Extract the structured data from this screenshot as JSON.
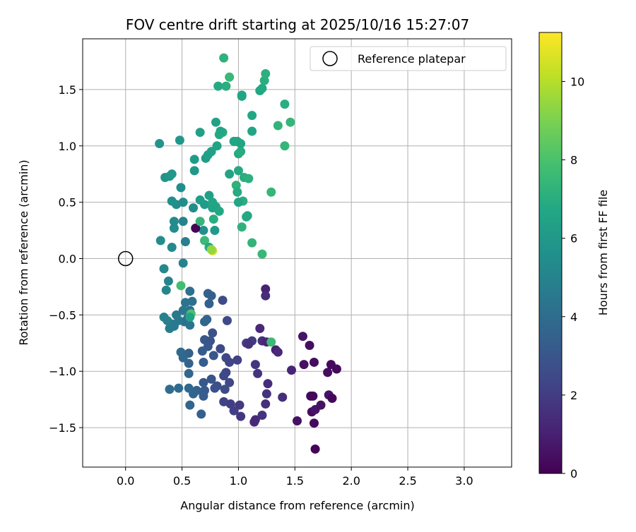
{
  "chart_data": {
    "type": "scatter",
    "title": "FOV centre drift starting at 2025/10/16 15:27:07",
    "xlabel": "Angular distance from reference (arcmin)",
    "ylabel": "Rotation from reference (arcmin)",
    "xlim": [
      -0.38,
      3.42
    ],
    "ylim": [
      -1.85,
      1.95
    ],
    "xticks": [
      0.0,
      0.5,
      1.0,
      1.5,
      2.0,
      2.5,
      3.0
    ],
    "xtick_labels": [
      "0.0",
      "0.5",
      "1.0",
      "1.5",
      "2.0",
      "2.5",
      "3.0"
    ],
    "yticks": [
      -1.5,
      -1.0,
      -0.5,
      0.0,
      0.5,
      1.0,
      1.5
    ],
    "ytick_labels": [
      "−1.5",
      "−1.0",
      "−0.5",
      "0.0",
      "0.5",
      "1.0",
      "1.5"
    ],
    "grid": true,
    "legend": {
      "position": "top-right",
      "entries": [
        "Reference platepar"
      ]
    },
    "reference_point": {
      "x": 0.0,
      "y": 0.0,
      "marker": "hollow circle"
    },
    "colorbar": {
      "label": "Hours from first FF file",
      "colormap": "viridis",
      "range": [
        0,
        11.25
      ],
      "ticks": [
        0,
        2,
        4,
        6,
        8,
        10
      ],
      "tick_labels": [
        "0",
        "2",
        "4",
        "6",
        "8",
        "10"
      ]
    },
    "points": [
      {
        "x": 1.68,
        "y": -1.69,
        "h": 0.1
      },
      {
        "x": 1.67,
        "y": -1.46,
        "h": 0.3
      },
      {
        "x": 1.52,
        "y": -1.44,
        "h": 0.5
      },
      {
        "x": 1.65,
        "y": -1.36,
        "h": 0.4
      },
      {
        "x": 1.68,
        "y": -1.34,
        "h": 0.6
      },
      {
        "x": 1.73,
        "y": -1.3,
        "h": 0.5
      },
      {
        "x": 1.64,
        "y": -1.22,
        "h": 0.3
      },
      {
        "x": 1.66,
        "y": -1.22,
        "h": 0.2
      },
      {
        "x": 1.8,
        "y": -1.21,
        "h": 0.6
      },
      {
        "x": 1.83,
        "y": -1.24,
        "h": 0.2
      },
      {
        "x": 1.79,
        "y": -1.01,
        "h": 0.4
      },
      {
        "x": 1.87,
        "y": -0.98,
        "h": 0.3
      },
      {
        "x": 1.82,
        "y": -0.94,
        "h": 0.3
      },
      {
        "x": 1.67,
        "y": -0.92,
        "h": 0.4
      },
      {
        "x": 1.58,
        "y": -0.94,
        "h": 0.5
      },
      {
        "x": 1.63,
        "y": -0.77,
        "h": 0.4
      },
      {
        "x": 1.57,
        "y": -0.69,
        "h": 0.6
      },
      {
        "x": 1.47,
        "y": -0.99,
        "h": 1.2
      },
      {
        "x": 1.39,
        "y": -1.23,
        "h": 1.5
      },
      {
        "x": 1.33,
        "y": -0.81,
        "h": 1.0
      },
      {
        "x": 1.35,
        "y": -0.83,
        "h": 1.3
      },
      {
        "x": 1.24,
        "y": -0.27,
        "h": 1.1
      },
      {
        "x": 1.24,
        "y": -0.33,
        "h": 1.4
      },
      {
        "x": 1.19,
        "y": -0.62,
        "h": 1.3
      },
      {
        "x": 1.21,
        "y": -0.73,
        "h": 1.5
      },
      {
        "x": 1.25,
        "y": -0.74,
        "h": 1.2
      },
      {
        "x": 1.26,
        "y": -1.11,
        "h": 1.4
      },
      {
        "x": 1.25,
        "y": -1.2,
        "h": 1.6
      },
      {
        "x": 1.24,
        "y": -1.29,
        "h": 1.5
      },
      {
        "x": 1.21,
        "y": -1.39,
        "h": 1.7
      },
      {
        "x": 1.15,
        "y": -1.43,
        "h": 1.4
      },
      {
        "x": 1.14,
        "y": -1.45,
        "h": 1.3
      },
      {
        "x": 1.02,
        "y": -1.4,
        "h": 1.8
      },
      {
        "x": 1.01,
        "y": -1.3,
        "h": 1.9
      },
      {
        "x": 0.93,
        "y": -1.29,
        "h": 2.0
      },
      {
        "x": 0.96,
        "y": -1.35,
        "h": 2.1
      },
      {
        "x": 1.15,
        "y": -0.94,
        "h": 1.8
      },
      {
        "x": 1.17,
        "y": -1.02,
        "h": 1.7
      },
      {
        "x": 1.12,
        "y": -0.73,
        "h": 1.9
      },
      {
        "x": 1.07,
        "y": -0.75,
        "h": 2.0
      },
      {
        "x": 1.09,
        "y": -0.76,
        "h": 1.6
      },
      {
        "x": 0.99,
        "y": -0.9,
        "h": 2.2
      },
      {
        "x": 0.89,
        "y": -1.01,
        "h": 2.3
      },
      {
        "x": 0.87,
        "y": -1.04,
        "h": 2.4
      },
      {
        "x": 0.9,
        "y": -0.55,
        "h": 2.5
      },
      {
        "x": 0.86,
        "y": -0.37,
        "h": 2.6
      },
      {
        "x": 0.87,
        "y": -1.27,
        "h": 2.2
      },
      {
        "x": 0.81,
        "y": -1.13,
        "h": 2.7
      },
      {
        "x": 0.79,
        "y": -1.15,
        "h": 2.8
      },
      {
        "x": 0.76,
        "y": -1.07,
        "h": 2.9
      },
      {
        "x": 0.84,
        "y": -0.8,
        "h": 2.5
      },
      {
        "x": 0.89,
        "y": -0.88,
        "h": 2.4
      },
      {
        "x": 0.92,
        "y": -0.92,
        "h": 2.3
      },
      {
        "x": 0.88,
        "y": -1.16,
        "h": 2.6
      },
      {
        "x": 0.92,
        "y": -1.1,
        "h": 2.4
      },
      {
        "x": 0.77,
        "y": -0.66,
        "h": 2.8
      },
      {
        "x": 0.75,
        "y": -0.73,
        "h": 2.9
      },
      {
        "x": 0.7,
        "y": -0.72,
        "h": 3.0
      },
      {
        "x": 0.73,
        "y": -0.78,
        "h": 3.1
      },
      {
        "x": 0.68,
        "y": -0.82,
        "h": 3.2
      },
      {
        "x": 0.78,
        "y": -0.86,
        "h": 3.0
      },
      {
        "x": 0.69,
        "y": -0.92,
        "h": 3.3
      },
      {
        "x": 0.69,
        "y": -1.1,
        "h": 3.1
      },
      {
        "x": 0.7,
        "y": -1.17,
        "h": 3.2
      },
      {
        "x": 0.69,
        "y": -1.22,
        "h": 3.3
      },
      {
        "x": 0.67,
        "y": -1.38,
        "h": 3.4
      },
      {
        "x": 0.63,
        "y": -1.17,
        "h": 3.5
      },
      {
        "x": 0.6,
        "y": -1.2,
        "h": 3.6
      },
      {
        "x": 0.57,
        "y": -1.3,
        "h": 3.7
      },
      {
        "x": 0.56,
        "y": -1.15,
        "h": 3.8
      },
      {
        "x": 0.47,
        "y": -1.15,
        "h": 3.9
      },
      {
        "x": 0.39,
        "y": -1.16,
        "h": 4.0
      },
      {
        "x": 0.56,
        "y": -1.02,
        "h": 3.7
      },
      {
        "x": 0.56,
        "y": -0.93,
        "h": 3.6
      },
      {
        "x": 0.56,
        "y": -0.84,
        "h": 3.5
      },
      {
        "x": 0.49,
        "y": -0.83,
        "h": 3.9
      },
      {
        "x": 0.51,
        "y": -0.88,
        "h": 3.8
      },
      {
        "x": 0.74,
        "y": -0.4,
        "h": 3.4
      },
      {
        "x": 0.73,
        "y": -0.31,
        "h": 3.5
      },
      {
        "x": 0.76,
        "y": -0.33,
        "h": 3.4
      },
      {
        "x": 0.72,
        "y": -0.54,
        "h": 3.6
      },
      {
        "x": 0.7,
        "y": -0.56,
        "h": 3.7
      },
      {
        "x": 0.57,
        "y": -0.29,
        "h": 4.1
      },
      {
        "x": 0.59,
        "y": -0.38,
        "h": 4.2
      },
      {
        "x": 0.57,
        "y": -0.46,
        "h": 4.0
      },
      {
        "x": 0.53,
        "y": -0.39,
        "h": 4.3
      },
      {
        "x": 0.51,
        "y": -0.46,
        "h": 4.4
      },
      {
        "x": 0.52,
        "y": -0.56,
        "h": 4.2
      },
      {
        "x": 0.55,
        "y": -0.53,
        "h": 4.1
      },
      {
        "x": 0.57,
        "y": -0.59,
        "h": 4.3
      },
      {
        "x": 0.47,
        "y": -0.55,
        "h": 4.5
      },
      {
        "x": 0.41,
        "y": -0.58,
        "h": 4.6
      },
      {
        "x": 0.39,
        "y": -0.62,
        "h": 4.7
      },
      {
        "x": 0.37,
        "y": -0.55,
        "h": 4.8
      },
      {
        "x": 0.34,
        "y": -0.52,
        "h": 4.9
      },
      {
        "x": 0.43,
        "y": -0.6,
        "h": 4.6
      },
      {
        "x": 0.45,
        "y": -0.5,
        "h": 4.5
      },
      {
        "x": 0.38,
        "y": -0.2,
        "h": 5.0
      },
      {
        "x": 0.36,
        "y": -0.28,
        "h": 5.1
      },
      {
        "x": 0.34,
        "y": -0.09,
        "h": 5.2
      },
      {
        "x": 0.51,
        "y": -0.04,
        "h": 5.0
      },
      {
        "x": 0.53,
        "y": 0.15,
        "h": 4.8
      },
      {
        "x": 0.41,
        "y": 0.1,
        "h": 5.3
      },
      {
        "x": 0.31,
        "y": 0.16,
        "h": 5.4
      },
      {
        "x": 0.51,
        "y": 0.33,
        "h": 5.0
      },
      {
        "x": 0.43,
        "y": 0.27,
        "h": 5.4
      },
      {
        "x": 0.43,
        "y": 0.33,
        "h": 5.3
      },
      {
        "x": 0.45,
        "y": 0.48,
        "h": 5.5
      },
      {
        "x": 0.41,
        "y": 0.51,
        "h": 5.6
      },
      {
        "x": 0.51,
        "y": 0.5,
        "h": 5.4
      },
      {
        "x": 0.49,
        "y": 0.63,
        "h": 5.5
      },
      {
        "x": 0.35,
        "y": 0.72,
        "h": 5.7
      },
      {
        "x": 0.39,
        "y": 0.73,
        "h": 5.8
      },
      {
        "x": 0.41,
        "y": 0.75,
        "h": 5.9
      },
      {
        "x": 0.3,
        "y": 1.02,
        "h": 5.8
      },
      {
        "x": 0.48,
        "y": 1.05,
        "h": 5.9
      },
      {
        "x": 0.61,
        "y": 0.78,
        "h": 6.0
      },
      {
        "x": 0.61,
        "y": 0.88,
        "h": 6.1
      },
      {
        "x": 0.6,
        "y": 0.45,
        "h": 5.5
      },
      {
        "x": 0.66,
        "y": 0.52,
        "h": 6.2
      },
      {
        "x": 0.7,
        "y": 0.48,
        "h": 6.1
      },
      {
        "x": 0.74,
        "y": 0.56,
        "h": 6.3
      },
      {
        "x": 0.77,
        "y": 0.45,
        "h": 6.4
      },
      {
        "x": 0.8,
        "y": 0.46,
        "h": 6.5
      },
      {
        "x": 0.77,
        "y": 0.5,
        "h": 6.6
      },
      {
        "x": 0.83,
        "y": 0.42,
        "h": 6.7
      },
      {
        "x": 0.78,
        "y": 0.35,
        "h": 7.0
      },
      {
        "x": 0.79,
        "y": 0.25,
        "h": 6.0
      },
      {
        "x": 0.69,
        "y": 0.25,
        "h": 5.6
      },
      {
        "x": 0.62,
        "y": 0.27,
        "h": 0.1
      },
      {
        "x": 0.66,
        "y": 0.33,
        "h": 7.4
      },
      {
        "x": 0.7,
        "y": 0.16,
        "h": 7.6
      },
      {
        "x": 0.74,
        "y": 0.1,
        "h": 6.8
      },
      {
        "x": 0.77,
        "y": 0.07,
        "h": 10.3
      },
      {
        "x": 0.76,
        "y": 0.08,
        "h": 9.4
      },
      {
        "x": 0.49,
        "y": -0.24,
        "h": 7.8
      },
      {
        "x": 0.58,
        "y": -0.49,
        "h": 8.0
      },
      {
        "x": 0.57,
        "y": -0.52,
        "h": 6.4
      },
      {
        "x": 1.29,
        "y": -0.74,
        "h": 7.6
      },
      {
        "x": 0.71,
        "y": 0.89,
        "h": 6.2
      },
      {
        "x": 0.73,
        "y": 0.92,
        "h": 6.3
      },
      {
        "x": 0.76,
        "y": 0.95,
        "h": 6.4
      },
      {
        "x": 0.81,
        "y": 1.0,
        "h": 6.5
      },
      {
        "x": 0.8,
        "y": 1.21,
        "h": 6.4
      },
      {
        "x": 0.66,
        "y": 1.12,
        "h": 6.3
      },
      {
        "x": 0.83,
        "y": 1.1,
        "h": 6.8
      },
      {
        "x": 0.86,
        "y": 1.12,
        "h": 6.9
      },
      {
        "x": 0.84,
        "y": 1.13,
        "h": 6.7
      },
      {
        "x": 0.92,
        "y": 0.75,
        "h": 6.5
      },
      {
        "x": 0.96,
        "y": 1.04,
        "h": 6.6
      },
      {
        "x": 0.99,
        "y": 1.04,
        "h": 6.7
      },
      {
        "x": 1.0,
        "y": 0.93,
        "h": 6.8
      },
      {
        "x": 1.02,
        "y": 0.95,
        "h": 6.9
      },
      {
        "x": 1.02,
        "y": 1.02,
        "h": 6.6
      },
      {
        "x": 1.0,
        "y": 0.78,
        "h": 6.8
      },
      {
        "x": 1.05,
        "y": 0.72,
        "h": 7.0
      },
      {
        "x": 1.09,
        "y": 0.71,
        "h": 7.1
      },
      {
        "x": 0.98,
        "y": 0.65,
        "h": 7.2
      },
      {
        "x": 0.99,
        "y": 0.59,
        "h": 6.9
      },
      {
        "x": 1.04,
        "y": 0.51,
        "h": 7.0
      },
      {
        "x": 1.0,
        "y": 0.5,
        "h": 6.6
      },
      {
        "x": 1.08,
        "y": 0.38,
        "h": 6.7
      },
      {
        "x": 1.07,
        "y": 0.37,
        "h": 6.8
      },
      {
        "x": 1.03,
        "y": 0.28,
        "h": 7.2
      },
      {
        "x": 1.12,
        "y": 0.14,
        "h": 7.3
      },
      {
        "x": 1.21,
        "y": 0.04,
        "h": 7.5
      },
      {
        "x": 1.29,
        "y": 0.59,
        "h": 7.4
      },
      {
        "x": 1.12,
        "y": 1.13,
        "h": 6.6
      },
      {
        "x": 1.12,
        "y": 1.27,
        "h": 6.7
      },
      {
        "x": 1.03,
        "y": 1.45,
        "h": 6.5
      },
      {
        "x": 1.03,
        "y": 1.44,
        "h": 6.6
      },
      {
        "x": 0.82,
        "y": 1.53,
        "h": 6.8
      },
      {
        "x": 0.89,
        "y": 1.53,
        "h": 7.0
      },
      {
        "x": 0.92,
        "y": 1.61,
        "h": 7.5
      },
      {
        "x": 0.87,
        "y": 1.78,
        "h": 7.2
      },
      {
        "x": 1.19,
        "y": 1.49,
        "h": 6.7
      },
      {
        "x": 1.21,
        "y": 1.51,
        "h": 6.8
      },
      {
        "x": 1.23,
        "y": 1.58,
        "h": 7.0
      },
      {
        "x": 1.24,
        "y": 1.64,
        "h": 7.1
      },
      {
        "x": 1.35,
        "y": 1.18,
        "h": 7.3
      },
      {
        "x": 1.41,
        "y": 1.37,
        "h": 7.0
      },
      {
        "x": 1.46,
        "y": 1.21,
        "h": 7.4
      },
      {
        "x": 1.41,
        "y": 1.0,
        "h": 7.4
      }
    ]
  }
}
